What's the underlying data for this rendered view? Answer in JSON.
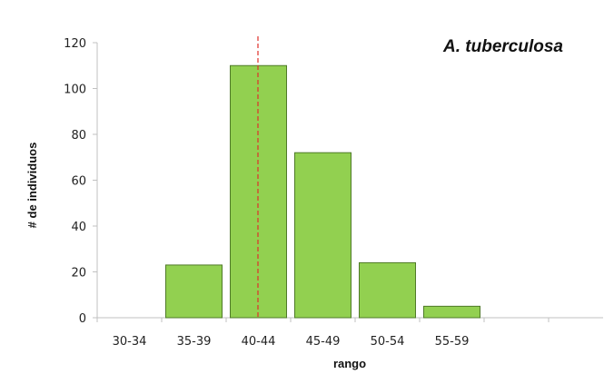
{
  "chart_data": {
    "type": "bar",
    "title": "A. tuberculosa",
    "xlabel": "rango",
    "ylabel": "# de individuos",
    "categories": [
      "30-34",
      "35-39",
      "40-44",
      "45-49",
      "50-54",
      "55-59"
    ],
    "values": [
      0,
      23,
      110,
      72,
      24,
      5
    ],
    "ylim": [
      0,
      120
    ],
    "yticks": [
      "0",
      "20",
      "40",
      "60",
      "80",
      "100",
      "120"
    ],
    "reference_line_category_position": 3.0,
    "grid": false,
    "legend": "none",
    "colors": {
      "bar_fill": "#92d050",
      "bar_stroke": "#4f7a28",
      "reference_line": "#e0302a",
      "axis": "#c0c0c0"
    }
  }
}
